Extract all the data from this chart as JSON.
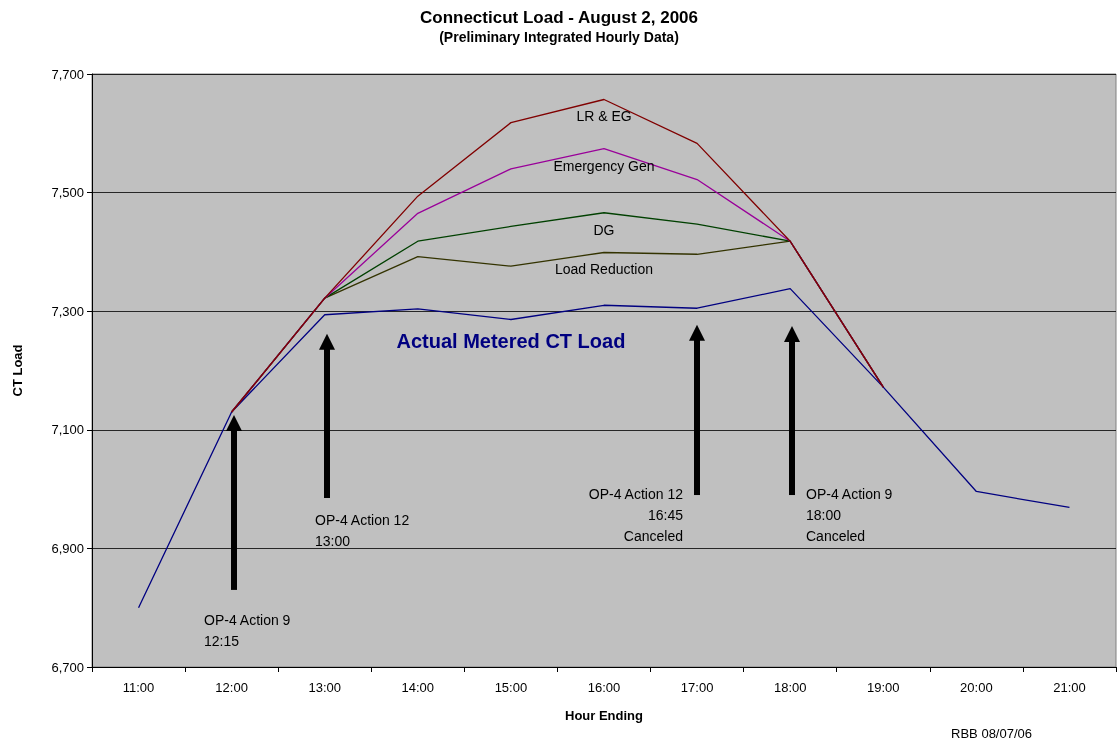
{
  "chart_data": {
    "type": "line",
    "title": "Connecticut Load - August 2, 2006",
    "subtitle": "(Preliminary Integrated Hourly Data)",
    "xlabel": "Hour Ending",
    "ylabel": "CT Load",
    "categories": [
      "11:00",
      "12:00",
      "13:00",
      "14:00",
      "15:00",
      "16:00",
      "17:00",
      "18:00",
      "19:00",
      "20:00",
      "21:00"
    ],
    "series": [
      {
        "name": "Actual Metered CT Load",
        "color": "#000080",
        "values": [
          6800,
          7130,
          7294,
          7304,
          7286,
          7310,
          7305,
          7338,
          7172,
          6996,
          6969
        ]
      },
      {
        "name": "Load Reduction",
        "color": "#333300",
        "values": [
          null,
          7130,
          7322,
          7392,
          7376,
          7399,
          7396,
          7418,
          7172,
          null,
          null
        ]
      },
      {
        "name": "DG",
        "color": "#004000",
        "values": [
          null,
          7130,
          7322,
          7418,
          7443,
          7466,
          7447,
          7418,
          7172,
          null,
          null
        ]
      },
      {
        "name": "Emergency Gen",
        "color": "#990099",
        "values": [
          null,
          7130,
          7322,
          7465,
          7540,
          7574,
          7522,
          7418,
          7172,
          null,
          null
        ]
      },
      {
        "name": "LR & EG",
        "color": "#800000",
        "values": [
          null,
          7130,
          7322,
          7494,
          7618,
          7657,
          7583,
          7418,
          7172,
          null,
          null
        ]
      }
    ],
    "ylim": [
      6700,
      7700
    ],
    "yticks": [
      {
        "value": 6700,
        "label": "6,700"
      },
      {
        "value": 6900,
        "label": "6,900"
      },
      {
        "value": 7100,
        "label": "7,100"
      },
      {
        "value": 7300,
        "label": "7,300"
      },
      {
        "value": 7500,
        "label": "7,500"
      },
      {
        "value": 7700,
        "label": "7,700"
      }
    ],
    "annotations": [
      "OP-4 Action 9\n12:15",
      "OP-4 Action 12\n13:00",
      "OP-4 Action 12\n16:45\nCanceled",
      "OP-4 Action 9\n18:00\nCanceled",
      "RBB 08/07/06"
    ],
    "grid": "y",
    "legend": false,
    "marker": "none",
    "line_style": "solid"
  }
}
